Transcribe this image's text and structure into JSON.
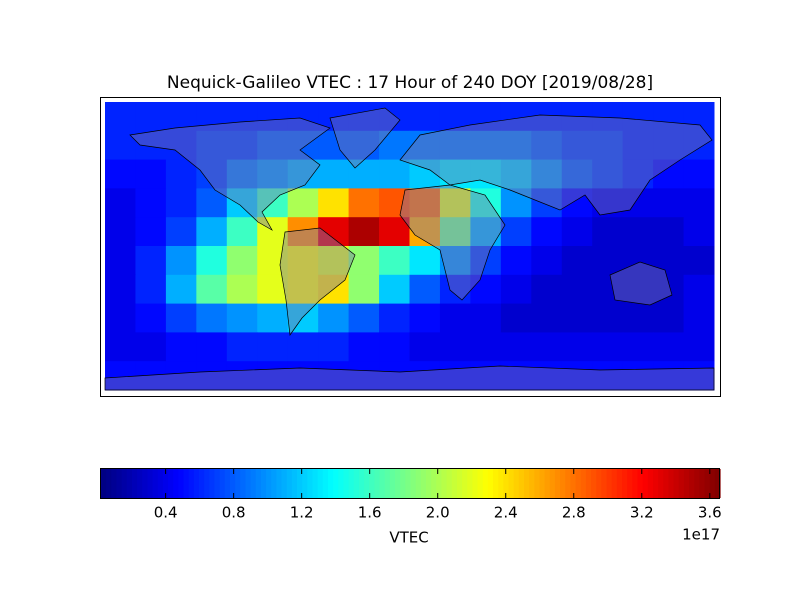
{
  "chart_data": {
    "type": "heatmap",
    "title": "Nequick-Galileo VTEC : 17 Hour of 240 DOY [2019/08/28]",
    "lon": [
      -171,
      -153,
      -135,
      -117,
      -99,
      -81,
      -63,
      -45,
      -27,
      -9,
      9,
      27,
      45,
      63,
      81,
      99,
      117,
      135,
      153,
      171
    ],
    "lat": [
      81,
      63,
      45,
      27,
      9,
      -9,
      -27,
      -45,
      -63,
      -81
    ],
    "z": [
      [
        0.6,
        0.6,
        0.6,
        0.6,
        0.6,
        0.6,
        0.6,
        0.6,
        0.6,
        0.6,
        0.6,
        0.6,
        0.6,
        0.6,
        0.6,
        0.6,
        0.6,
        0.6,
        0.6,
        0.6
      ],
      [
        0.6,
        0.6,
        0.6,
        0.7,
        0.7,
        0.8,
        0.8,
        0.8,
        0.8,
        0.9,
        0.9,
        0.9,
        0.9,
        0.9,
        0.8,
        0.7,
        0.7,
        0.6,
        0.6,
        0.6
      ],
      [
        0.5,
        0.5,
        0.6,
        0.7,
        0.9,
        1.0,
        1.1,
        1.1,
        1.1,
        1.1,
        1.2,
        1.3,
        1.3,
        1.2,
        1.0,
        0.8,
        0.7,
        0.6,
        0.5,
        0.5
      ],
      [
        0.4,
        0.5,
        0.6,
        0.8,
        1.2,
        1.6,
        2.0,
        2.4,
        2.8,
        2.9,
        2.8,
        2.2,
        1.5,
        1.0,
        0.7,
        0.5,
        0.4,
        0.4,
        0.4,
        0.4
      ],
      [
        0.4,
        0.5,
        0.7,
        1.1,
        1.6,
        2.2,
        2.7,
        3.3,
        3.5,
        3.3,
        2.6,
        1.8,
        1.1,
        0.7,
        0.5,
        0.4,
        0.3,
        0.3,
        0.3,
        0.4
      ],
      [
        0.4,
        0.6,
        1.0,
        1.5,
        1.9,
        2.2,
        2.3,
        2.2,
        1.9,
        1.6,
        1.3,
        1.0,
        0.7,
        0.5,
        0.4,
        0.3,
        0.3,
        0.3,
        0.3,
        0.3
      ],
      [
        0.4,
        0.6,
        1.1,
        1.7,
        2.0,
        2.2,
        2.3,
        2.4,
        1.9,
        1.2,
        0.8,
        0.6,
        0.5,
        0.4,
        0.3,
        0.3,
        0.3,
        0.3,
        0.3,
        0.4
      ],
      [
        0.4,
        0.5,
        0.7,
        0.9,
        1.0,
        1.1,
        1.2,
        1.0,
        0.8,
        0.6,
        0.5,
        0.4,
        0.4,
        0.3,
        0.3,
        0.3,
        0.3,
        0.3,
        0.3,
        0.4
      ],
      [
        0.4,
        0.4,
        0.5,
        0.5,
        0.6,
        0.6,
        0.6,
        0.6,
        0.5,
        0.5,
        0.4,
        0.4,
        0.4,
        0.4,
        0.4,
        0.4,
        0.4,
        0.4,
        0.4,
        0.4
      ],
      [
        0.5,
        0.5,
        0.5,
        0.5,
        0.5,
        0.5,
        0.5,
        0.5,
        0.5,
        0.5,
        0.5,
        0.5,
        0.5,
        0.5,
        0.5,
        0.5,
        0.5,
        0.5,
        0.5,
        0.5
      ]
    ],
    "colormap": "jet",
    "clim": [
      0.02,
      3.66
    ],
    "cticks": [
      0.4,
      0.8,
      1.2,
      1.6,
      {
        "value": 2,
        "label": "2.0"
      },
      2.4,
      2.8,
      3.2,
      3.6
    ],
    "colorbar_label": "VTEC",
    "offset_label": "1e17"
  }
}
